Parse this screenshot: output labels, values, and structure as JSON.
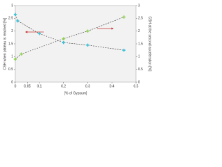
{
  "chart_data": {
    "type": "scatter",
    "x_label": "[% of Gypsum]",
    "y_label": "CSH when plateau is reached [%]",
    "y2_label": "CSH at the second acceleration [%]",
    "xlim": [
      0,
      0.5
    ],
    "xticks": [
      0,
      0.05,
      0.1,
      0.2,
      0.3,
      0.4,
      0.5
    ],
    "ylim": [
      0,
      3
    ],
    "yticks": [
      0,
      0.5,
      1,
      1.5,
      2,
      2.5,
      3
    ],
    "y2lim": [
      0,
      3
    ],
    "y2ticks": [
      0,
      0.5,
      1,
      1.5,
      2,
      2.5,
      3
    ],
    "series": [
      {
        "name": "CSH when plateau is reached",
        "color": "#3fc1d8",
        "x": [
          0,
          0.01,
          0.1,
          0.2,
          0.3,
          0.45
        ],
        "values": [
          2.65,
          2.4,
          1.9,
          1.55,
          1.45,
          1.25
        ]
      },
      {
        "name": "CSH at the second acceleration",
        "color": "#8fd14f",
        "axis": "y2",
        "x": [
          0,
          0.025,
          0.2,
          0.3,
          0.45
        ],
        "values": [
          0.9,
          1.1,
          1.7,
          2.0,
          2.55
        ]
      }
    ]
  }
}
